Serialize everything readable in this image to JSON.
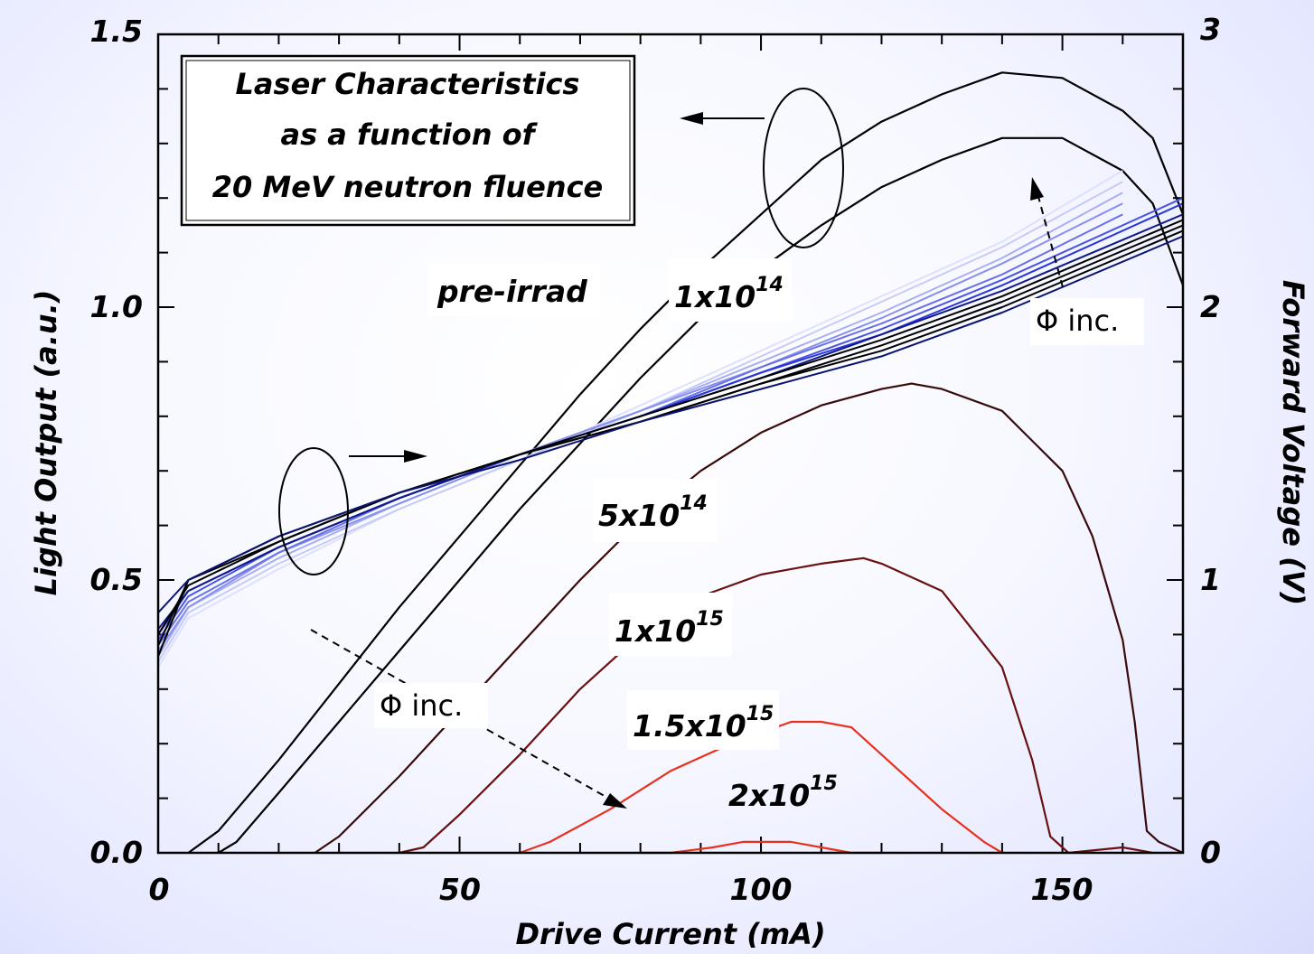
{
  "chart_data": {
    "type": "line",
    "title_lines": [
      "Laser Characteristics",
      "as a function of",
      "20 MeV neutron fluence"
    ],
    "xlabel": "Drive Current (mA)",
    "ylabel_left": "Light Output (a.u.)",
    "ylabel_right": "Forward Voltage (V)",
    "xlim": [
      0,
      170
    ],
    "ylim_left": [
      0,
      1.5
    ],
    "ylim_right": [
      0,
      3
    ],
    "x_ticks": [
      "0",
      "50",
      "100",
      "150"
    ],
    "y_left_ticks": [
      "0.0",
      "0.5",
      "1.0",
      "1.5"
    ],
    "y_right_ticks": [
      "0",
      "1",
      "2",
      "3"
    ],
    "light_output_series": [
      {
        "name": "pre-irrad",
        "color": "#000000",
        "points": [
          [
            5,
            0
          ],
          [
            10,
            0.04
          ],
          [
            20,
            0.17
          ],
          [
            30,
            0.31
          ],
          [
            40,
            0.45
          ],
          [
            50,
            0.58
          ],
          [
            60,
            0.71
          ],
          [
            70,
            0.84
          ],
          [
            80,
            0.96
          ],
          [
            90,
            1.07
          ],
          [
            100,
            1.17
          ],
          [
            110,
            1.27
          ],
          [
            120,
            1.34
          ],
          [
            130,
            1.39
          ],
          [
            140,
            1.43
          ],
          [
            150,
            1.42
          ],
          [
            160,
            1.36
          ],
          [
            165,
            1.31
          ],
          [
            170,
            1.17
          ]
        ]
      },
      {
        "name": "1x10^14",
        "color": "#000000",
        "points": [
          [
            10,
            0
          ],
          [
            13,
            0.02
          ],
          [
            20,
            0.11
          ],
          [
            30,
            0.24
          ],
          [
            40,
            0.37
          ],
          [
            50,
            0.5
          ],
          [
            60,
            0.63
          ],
          [
            70,
            0.75
          ],
          [
            80,
            0.87
          ],
          [
            90,
            0.98
          ],
          [
            100,
            1.07
          ],
          [
            110,
            1.15
          ],
          [
            120,
            1.22
          ],
          [
            130,
            1.27
          ],
          [
            140,
            1.31
          ],
          [
            150,
            1.31
          ],
          [
            160,
            1.25
          ],
          [
            165,
            1.19
          ],
          [
            170,
            1.04
          ]
        ]
      },
      {
        "name": "5x10^14",
        "color": "#3a0a0a",
        "points": [
          [
            26,
            0
          ],
          [
            30,
            0.03
          ],
          [
            40,
            0.14
          ],
          [
            50,
            0.26
          ],
          [
            60,
            0.38
          ],
          [
            70,
            0.5
          ],
          [
            80,
            0.61
          ],
          [
            90,
            0.7
          ],
          [
            100,
            0.77
          ],
          [
            110,
            0.82
          ],
          [
            120,
            0.85
          ],
          [
            125,
            0.86
          ],
          [
            130,
            0.85
          ],
          [
            140,
            0.81
          ],
          [
            150,
            0.7
          ],
          [
            155,
            0.58
          ],
          [
            160,
            0.39
          ],
          [
            162,
            0.24
          ],
          [
            164,
            0.04
          ],
          [
            166,
            0.02
          ],
          [
            170,
            0
          ]
        ]
      },
      {
        "name": "1x10^15",
        "color": "#6b1010",
        "points": [
          [
            40,
            0
          ],
          [
            44,
            0.01
          ],
          [
            50,
            0.07
          ],
          [
            60,
            0.18
          ],
          [
            70,
            0.3
          ],
          [
            80,
            0.4
          ],
          [
            90,
            0.47
          ],
          [
            100,
            0.51
          ],
          [
            110,
            0.53
          ],
          [
            117,
            0.54
          ],
          [
            120,
            0.53
          ],
          [
            130,
            0.48
          ],
          [
            140,
            0.34
          ],
          [
            145,
            0.17
          ],
          [
            148,
            0.03
          ],
          [
            151,
            0
          ],
          [
            160,
            0.01
          ],
          [
            165,
            0
          ]
        ]
      },
      {
        "name": "1.5x10^15",
        "color": "#e8301e",
        "points": [
          [
            60,
            0
          ],
          [
            65,
            0.02
          ],
          [
            75,
            0.08
          ],
          [
            85,
            0.15
          ],
          [
            95,
            0.2
          ],
          [
            105,
            0.24
          ],
          [
            110,
            0.24
          ],
          [
            115,
            0.23
          ],
          [
            120,
            0.18
          ],
          [
            130,
            0.08
          ],
          [
            137,
            0.02
          ],
          [
            140,
            0
          ]
        ]
      },
      {
        "name": "2x10^15",
        "color": "#e8301e",
        "points": [
          [
            80,
            0
          ],
          [
            85,
            0
          ],
          [
            92,
            0.01
          ],
          [
            97,
            0.02
          ],
          [
            100,
            0.02
          ],
          [
            105,
            0.02
          ],
          [
            110,
            0.01
          ],
          [
            115,
            0
          ],
          [
            120,
            0
          ]
        ]
      }
    ],
    "forward_voltage_series": [
      {
        "color": "#dde0ff",
        "points": [
          [
            0,
            0.34
          ],
          [
            5,
            0.43
          ],
          [
            20,
            0.52
          ],
          [
            40,
            0.63
          ],
          [
            60,
            0.72
          ],
          [
            80,
            0.82
          ],
          [
            100,
            0.92
          ],
          [
            120,
            1.02
          ],
          [
            140,
            1.12
          ],
          [
            160,
            1.25
          ]
        ]
      },
      {
        "color": "#c6caf8",
        "points": [
          [
            0,
            0.35
          ],
          [
            5,
            0.44
          ],
          [
            20,
            0.53
          ],
          [
            40,
            0.63
          ],
          [
            60,
            0.72
          ],
          [
            80,
            0.81
          ],
          [
            100,
            0.91
          ],
          [
            120,
            1.01
          ],
          [
            140,
            1.11
          ],
          [
            160,
            1.23
          ]
        ]
      },
      {
        "color": "#a8aef4",
        "points": [
          [
            0,
            0.36
          ],
          [
            5,
            0.45
          ],
          [
            20,
            0.54
          ],
          [
            40,
            0.64
          ],
          [
            60,
            0.73
          ],
          [
            80,
            0.81
          ],
          [
            100,
            0.9
          ],
          [
            120,
            0.99
          ],
          [
            140,
            1.09
          ],
          [
            160,
            1.21
          ]
        ]
      },
      {
        "color": "#8890ee",
        "points": [
          [
            0,
            0.37
          ],
          [
            5,
            0.45
          ],
          [
            20,
            0.55
          ],
          [
            40,
            0.64
          ],
          [
            60,
            0.73
          ],
          [
            80,
            0.81
          ],
          [
            100,
            0.89
          ],
          [
            120,
            0.98
          ],
          [
            140,
            1.08
          ],
          [
            160,
            1.19
          ]
        ]
      },
      {
        "color": "#6a72e8",
        "points": [
          [
            0,
            0.38
          ],
          [
            5,
            0.46
          ],
          [
            20,
            0.55
          ],
          [
            40,
            0.65
          ],
          [
            60,
            0.73
          ],
          [
            80,
            0.8
          ],
          [
            100,
            0.89
          ],
          [
            120,
            0.97
          ],
          [
            140,
            1.06
          ],
          [
            160,
            1.17
          ]
        ]
      },
      {
        "color": "#4a54e2",
        "points": [
          [
            0,
            0.39
          ],
          [
            5,
            0.47
          ],
          [
            20,
            0.56
          ],
          [
            40,
            0.65
          ],
          [
            60,
            0.73
          ],
          [
            80,
            0.8
          ],
          [
            100,
            0.88
          ],
          [
            120,
            0.96
          ],
          [
            140,
            1.05
          ],
          [
            170,
            1.2
          ]
        ]
      },
      {
        "color": "#2836dc",
        "points": [
          [
            0,
            0.4
          ],
          [
            5,
            0.48
          ],
          [
            20,
            0.56
          ],
          [
            40,
            0.65
          ],
          [
            60,
            0.73
          ],
          [
            80,
            0.8
          ],
          [
            100,
            0.88
          ],
          [
            120,
            0.95
          ],
          [
            140,
            1.04
          ],
          [
            170,
            1.19
          ]
        ]
      },
      {
        "color": "#101a8a",
        "points": [
          [
            0,
            0.41
          ],
          [
            5,
            0.48
          ],
          [
            20,
            0.56
          ],
          [
            40,
            0.65
          ],
          [
            60,
            0.73
          ],
          [
            80,
            0.8
          ],
          [
            100,
            0.87
          ],
          [
            120,
            0.95
          ],
          [
            140,
            1.03
          ],
          [
            170,
            1.17
          ]
        ]
      },
      {
        "color": "#000000",
        "points": [
          [
            0,
            0.4
          ],
          [
            5,
            0.49
          ],
          [
            20,
            0.57
          ],
          [
            40,
            0.66
          ],
          [
            60,
            0.73
          ],
          [
            80,
            0.8
          ],
          [
            100,
            0.87
          ],
          [
            120,
            0.94
          ],
          [
            140,
            1.02
          ],
          [
            170,
            1.16
          ]
        ]
      },
      {
        "color": "#000000",
        "points": [
          [
            0,
            0.38
          ],
          [
            5,
            0.5
          ],
          [
            20,
            0.57
          ],
          [
            40,
            0.66
          ],
          [
            60,
            0.73
          ],
          [
            80,
            0.79
          ],
          [
            100,
            0.86
          ],
          [
            120,
            0.93
          ],
          [
            140,
            1.01
          ],
          [
            170,
            1.15
          ]
        ]
      },
      {
        "color": "#000000",
        "points": [
          [
            0,
            0.36
          ],
          [
            5,
            0.5
          ],
          [
            20,
            0.58
          ],
          [
            40,
            0.66
          ],
          [
            60,
            0.73
          ],
          [
            80,
            0.79
          ],
          [
            100,
            0.86
          ],
          [
            120,
            0.92
          ],
          [
            140,
            1.0
          ],
          [
            170,
            1.14
          ]
        ]
      },
      {
        "color": "#0a1470",
        "points": [
          [
            0,
            0.44
          ],
          [
            5,
            0.5
          ],
          [
            20,
            0.58
          ],
          [
            40,
            0.66
          ],
          [
            60,
            0.72
          ],
          [
            80,
            0.79
          ],
          [
            100,
            0.85
          ],
          [
            120,
            0.91
          ],
          [
            140,
            0.99
          ],
          [
            170,
            1.13
          ]
        ]
      }
    ],
    "series_labels": [
      "pre-irrad",
      "1x10",
      "5x10",
      "1x10",
      "1.5x10",
      "2x10"
    ],
    "series_label_exponents": [
      "",
      "14",
      "14",
      "15",
      "15",
      "15"
    ],
    "arrow_annotations": [
      "Φ inc.",
      "Φ inc."
    ]
  }
}
